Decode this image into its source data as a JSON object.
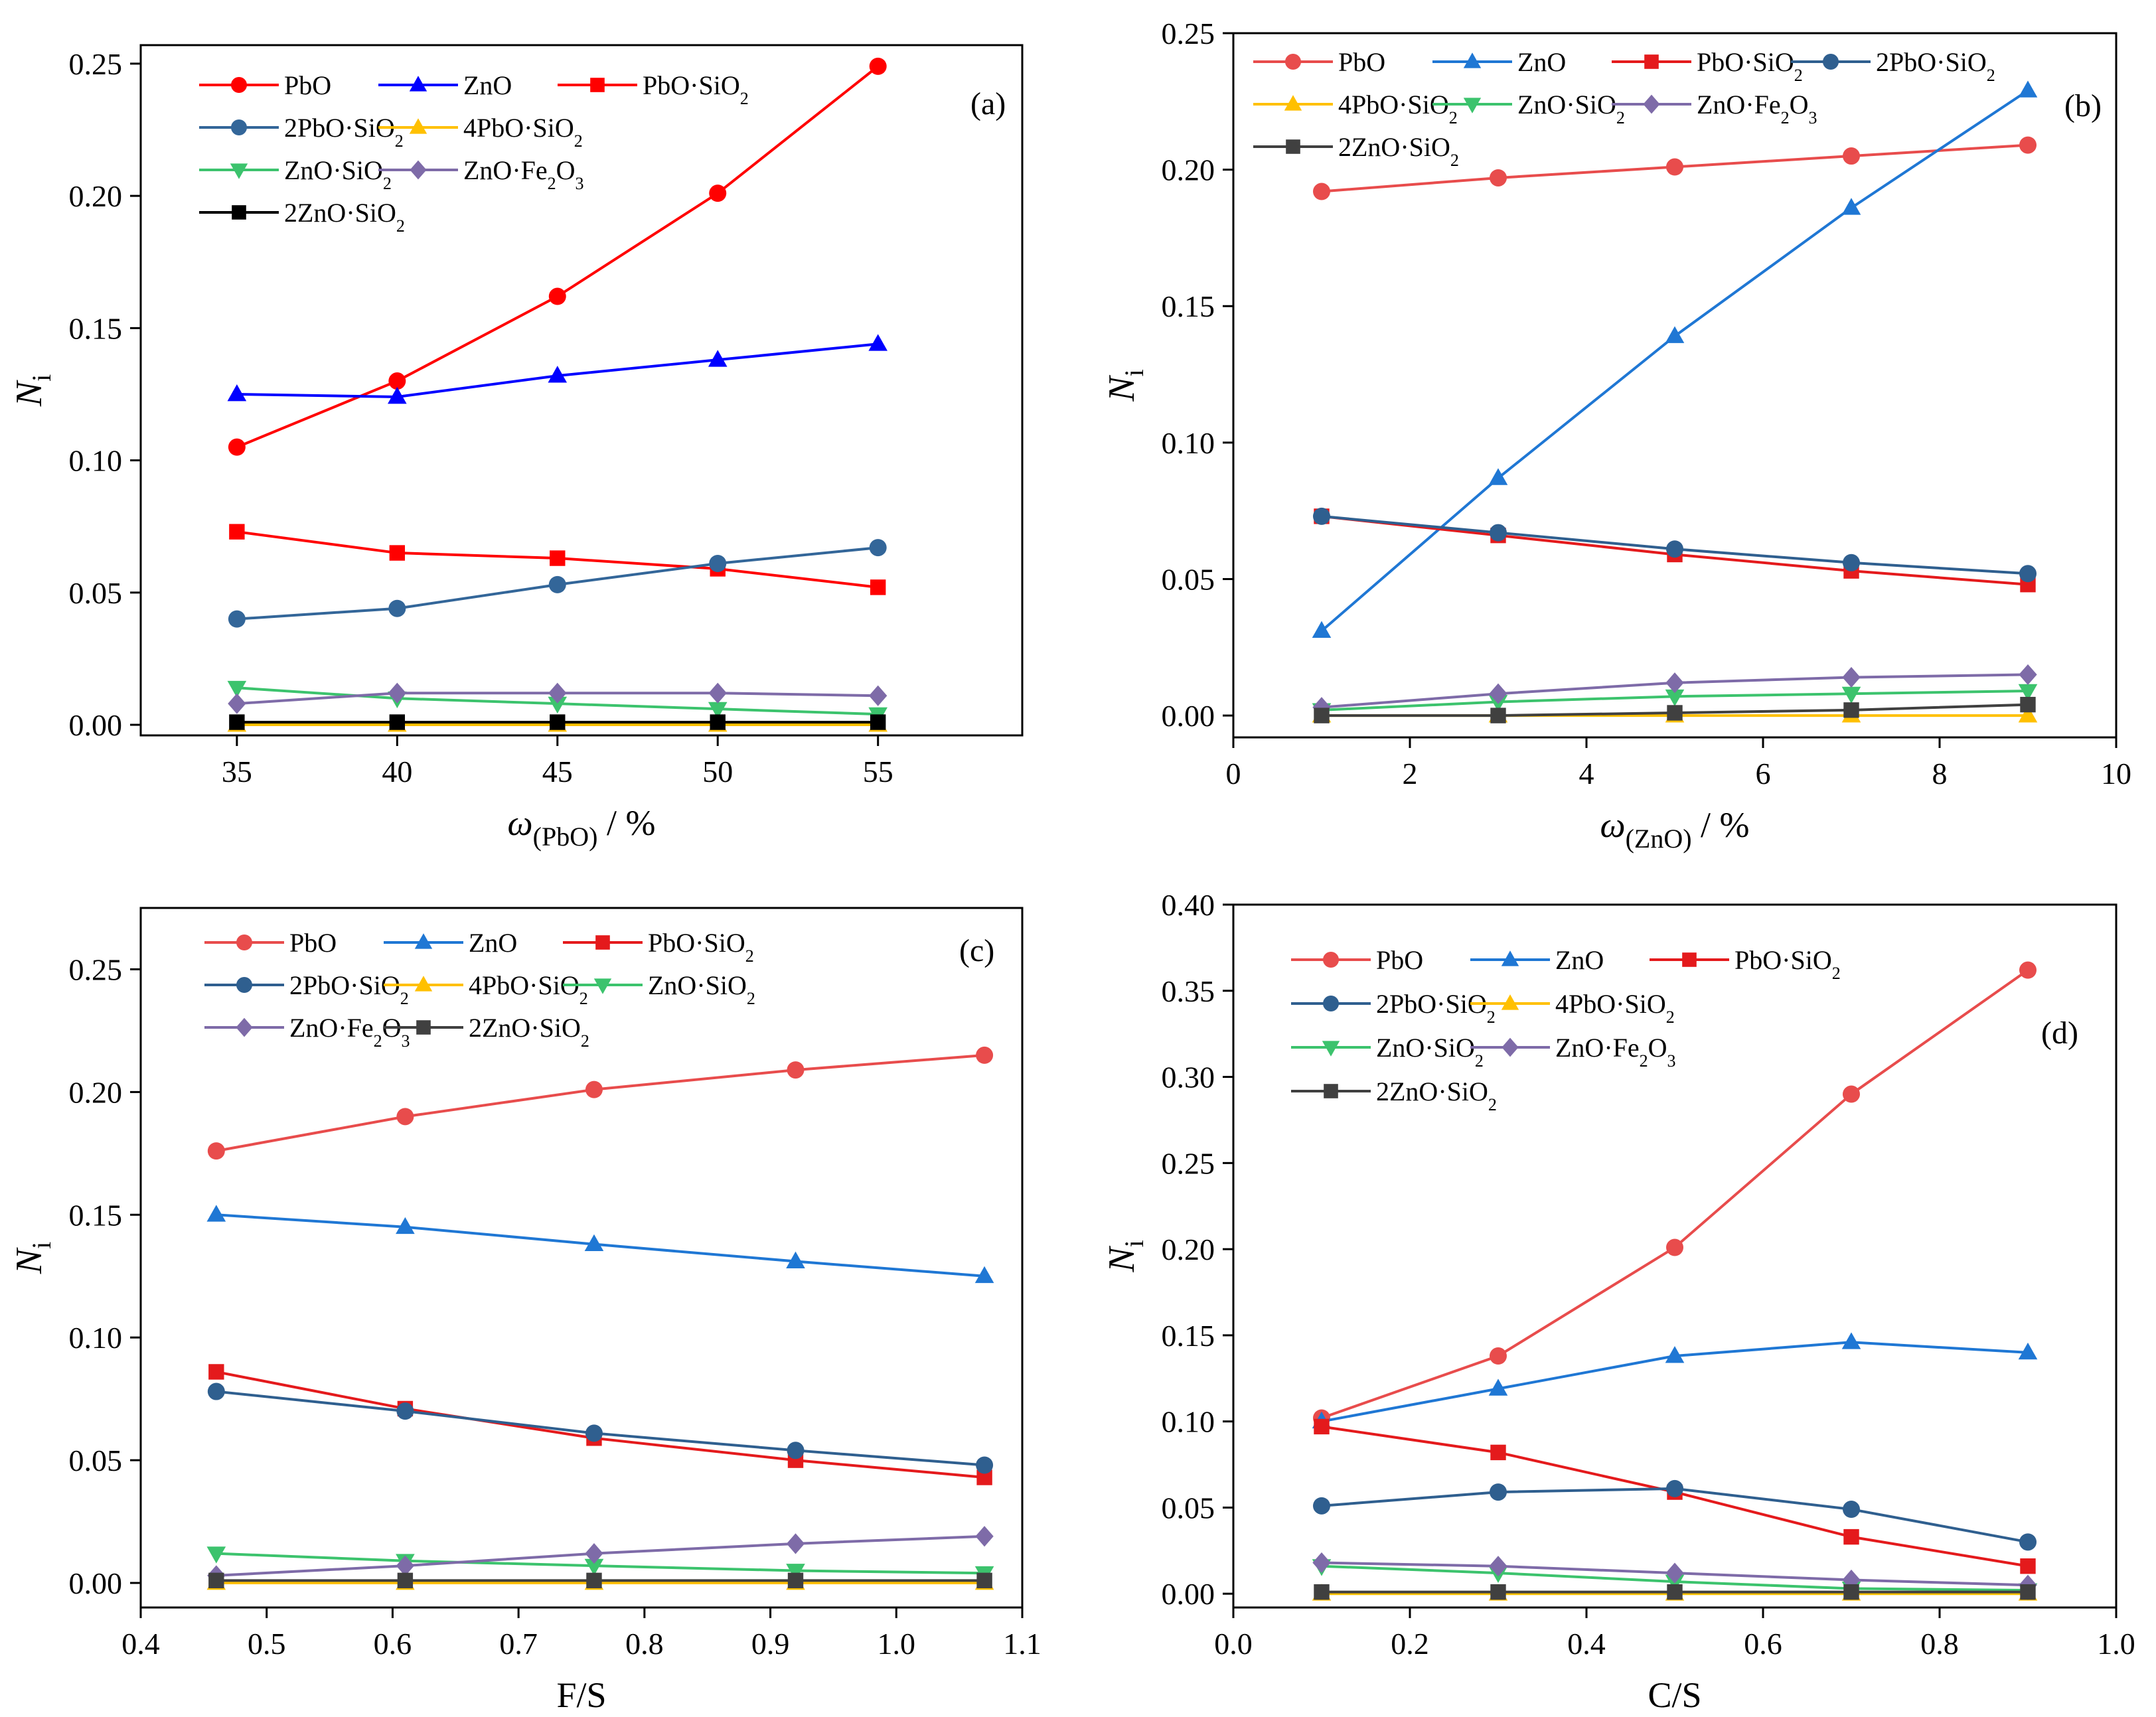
{
  "chart_data": [
    {
      "panel_label": "(a)",
      "type": "line",
      "xlabel": {
        "main": "ω",
        "sub": "(PbO)",
        "tail": " / %"
      },
      "ylabel": {
        "main": "N",
        "sub": "i"
      },
      "xlim": [
        32,
        59.5
      ],
      "ylim": [
        -0.004,
        0.257
      ],
      "xticks": [
        "35",
        "40",
        "45",
        "50",
        "55"
      ],
      "xtick_values": [
        35,
        40,
        45,
        50,
        55
      ],
      "yticks": [
        "0.00",
        "0.05",
        "0.10",
        "0.15",
        "0.20",
        "0.25"
      ],
      "ytick_values": [
        0,
        0.05,
        0.1,
        0.15,
        0.2,
        0.25
      ],
      "x": [
        35,
        40,
        45,
        50,
        55
      ],
      "legend_rows": [
        [
          "PbO",
          "ZnO",
          "PbO·SiO2"
        ],
        [
          "2PbO·SiO2",
          "4PbO·SiO2"
        ],
        [
          "ZnO·SiO2",
          "ZnO·Fe2O3"
        ],
        [
          "2ZnO·SiO2"
        ]
      ],
      "series": [
        {
          "name": "PbO",
          "color": "#ff0000",
          "marker": "circle",
          "values": [
            0.105,
            0.13,
            0.162,
            0.201,
            0.249
          ]
        },
        {
          "name": "ZnO",
          "color": "#0000ff",
          "marker": "triangle-up",
          "values": [
            0.125,
            0.124,
            0.132,
            0.138,
            0.144
          ]
        },
        {
          "name": "PbO·SiO2",
          "color": "#ff0000",
          "marker": "square",
          "values": [
            0.073,
            0.065,
            0.063,
            0.059,
            0.052
          ]
        },
        {
          "name": "2PbO·SiO2",
          "color": "#336699",
          "marker": "circle",
          "values": [
            0.04,
            0.044,
            0.053,
            0.061,
            0.067
          ]
        },
        {
          "name": "4PbO·SiO2",
          "color": "#ffc000",
          "marker": "triangle-up",
          "values": [
            0.0,
            0.0,
            0.0,
            0.0,
            0.0
          ]
        },
        {
          "name": "ZnO·SiO2",
          "color": "#3cc36d",
          "marker": "triangle-down",
          "values": [
            0.014,
            0.01,
            0.008,
            0.006,
            0.004
          ]
        },
        {
          "name": "ZnO·Fe2O3",
          "color": "#7e6ba8",
          "marker": "diamond",
          "values": [
            0.008,
            0.012,
            0.012,
            0.012,
            0.011
          ]
        },
        {
          "name": "2ZnO·SiO2",
          "color": "#000000",
          "marker": "square",
          "values": [
            0.001,
            0.001,
            0.001,
            0.001,
            0.001
          ]
        }
      ]
    },
    {
      "panel_label": "(b)",
      "type": "line",
      "xlabel": {
        "main": "ω",
        "sub": "(ZnO)",
        "tail": " / %"
      },
      "ylabel": {
        "main": "N",
        "sub": "i"
      },
      "xlim": [
        0,
        10
      ],
      "ylim": [
        -0.008,
        0.25
      ],
      "xticks": [
        "0",
        "2",
        "4",
        "6",
        "8",
        "10"
      ],
      "xtick_values": [
        0,
        2,
        4,
        6,
        8,
        10
      ],
      "yticks": [
        "0.00",
        "0.05",
        "0.10",
        "0.15",
        "0.20",
        "0.25"
      ],
      "ytick_values": [
        0,
        0.05,
        0.1,
        0.15,
        0.2,
        0.25
      ],
      "x": [
        1,
        3,
        5,
        7,
        9
      ],
      "legend_rows": [
        [
          "PbO",
          "ZnO",
          "PbO·SiO2",
          "2PbO·SiO2"
        ],
        [
          "4PbO·SiO2",
          "ZnO·SiO2",
          "ZnO·Fe2O3"
        ],
        [
          "2ZnO·SiO2"
        ]
      ],
      "series": [
        {
          "name": "PbO",
          "color": "#e84c4c",
          "marker": "circle",
          "values": [
            0.192,
            0.197,
            0.201,
            0.205,
            0.209
          ]
        },
        {
          "name": "ZnO",
          "color": "#1f77d4",
          "marker": "triangle-up",
          "values": [
            0.031,
            0.087,
            0.139,
            0.186,
            0.229
          ]
        },
        {
          "name": "PbO·SiO2",
          "color": "#e41a1c",
          "marker": "square",
          "values": [
            0.073,
            0.066,
            0.059,
            0.053,
            0.048
          ]
        },
        {
          "name": "2PbO·SiO2",
          "color": "#2f5f8f",
          "marker": "circle",
          "values": [
            0.073,
            0.067,
            0.061,
            0.056,
            0.052
          ]
        },
        {
          "name": "4PbO·SiO2",
          "color": "#ffc000",
          "marker": "triangle-up",
          "values": [
            0.0,
            0.0,
            0.0,
            0.0,
            0.0
          ]
        },
        {
          "name": "ZnO·SiO2",
          "color": "#3cc36d",
          "marker": "triangle-down",
          "values": [
            0.002,
            0.005,
            0.007,
            0.008,
            0.009
          ]
        },
        {
          "name": "ZnO·Fe2O3",
          "color": "#7e6ba8",
          "marker": "diamond",
          "values": [
            0.003,
            0.008,
            0.012,
            0.014,
            0.015
          ]
        },
        {
          "name": "2ZnO·SiO2",
          "color": "#404040",
          "marker": "square",
          "values": [
            0.0,
            0.0,
            0.001,
            0.002,
            0.004
          ]
        }
      ]
    },
    {
      "panel_label": "(c)",
      "type": "line",
      "xlabel": {
        "main": "F/S",
        "sub": "",
        "tail": ""
      },
      "ylabel": {
        "main": "N",
        "sub": "i"
      },
      "xlim": [
        0.4,
        1.1
      ],
      "ylim": [
        -0.01,
        0.275
      ],
      "xticks": [
        "0.4",
        "0.5",
        "0.6",
        "0.7",
        "0.8",
        "0.9",
        "1.0",
        "1.1"
      ],
      "xtick_values": [
        0.4,
        0.5,
        0.6,
        0.7,
        0.8,
        0.9,
        1.0,
        1.1
      ],
      "yticks": [
        "0.00",
        "0.05",
        "0.10",
        "0.15",
        "0.20",
        "0.25"
      ],
      "ytick_values": [
        0,
        0.05,
        0.1,
        0.15,
        0.2,
        0.25
      ],
      "x": [
        0.46,
        0.61,
        0.76,
        0.92,
        1.07
      ],
      "legend_rows": [
        [
          "PbO",
          "ZnO",
          "PbO·SiO2"
        ],
        [
          "2PbO·SiO2",
          "4PbO·SiO2",
          "ZnO·SiO2"
        ],
        [
          "ZnO·Fe2O3",
          "2ZnO·SiO2"
        ]
      ],
      "series": [
        {
          "name": "PbO",
          "color": "#e84c4c",
          "marker": "circle",
          "values": [
            0.176,
            0.19,
            0.201,
            0.209,
            0.215
          ]
        },
        {
          "name": "ZnO",
          "color": "#1f77d4",
          "marker": "triangle-up",
          "values": [
            0.15,
            0.145,
            0.138,
            0.131,
            0.125
          ]
        },
        {
          "name": "PbO·SiO2",
          "color": "#e41a1c",
          "marker": "square",
          "values": [
            0.086,
            0.071,
            0.059,
            0.05,
            0.043
          ]
        },
        {
          "name": "2PbO·SiO2",
          "color": "#2f5f8f",
          "marker": "circle",
          "values": [
            0.078,
            0.07,
            0.061,
            0.054,
            0.048
          ]
        },
        {
          "name": "4PbO·SiO2",
          "color": "#ffc000",
          "marker": "triangle-up",
          "values": [
            0.0,
            0.0,
            0.0,
            0.0,
            0.0
          ]
        },
        {
          "name": "ZnO·SiO2",
          "color": "#3cc36d",
          "marker": "triangle-down",
          "values": [
            0.012,
            0.009,
            0.007,
            0.005,
            0.004
          ]
        },
        {
          "name": "ZnO·Fe2O3",
          "color": "#7e6ba8",
          "marker": "diamond",
          "values": [
            0.003,
            0.007,
            0.012,
            0.016,
            0.019
          ]
        },
        {
          "name": "2ZnO·SiO2",
          "color": "#404040",
          "marker": "square",
          "values": [
            0.001,
            0.001,
            0.001,
            0.001,
            0.001
          ]
        }
      ]
    },
    {
      "panel_label": "(d)",
      "type": "line",
      "xlabel": {
        "main": "C/S",
        "sub": "",
        "tail": ""
      },
      "ylabel": {
        "main": "N",
        "sub": "i"
      },
      "xlim": [
        0,
        1
      ],
      "ylim": [
        -0.008,
        0.4
      ],
      "xticks": [
        "0.0",
        "0.2",
        "0.4",
        "0.6",
        "0.8",
        "1.0"
      ],
      "xtick_values": [
        0,
        0.2,
        0.4,
        0.6,
        0.8,
        1.0
      ],
      "yticks": [
        "0.00",
        "0.05",
        "0.10",
        "0.15",
        "0.20",
        "0.25",
        "0.30",
        "0.35",
        "0.40"
      ],
      "ytick_values": [
        0,
        0.05,
        0.1,
        0.15,
        0.2,
        0.25,
        0.3,
        0.35,
        0.4
      ],
      "x": [
        0.1,
        0.3,
        0.5,
        0.7,
        0.9
      ],
      "legend_rows": [
        [
          "PbO",
          "ZnO",
          "PbO·SiO2"
        ],
        [
          "2PbO·SiO2",
          "4PbO·SiO2"
        ],
        [
          "ZnO·SiO2",
          "ZnO·Fe2O3"
        ],
        [
          "2ZnO·SiO2"
        ]
      ],
      "series": [
        {
          "name": "PbO",
          "color": "#e84c4c",
          "marker": "circle",
          "values": [
            0.102,
            0.138,
            0.201,
            0.29,
            0.362
          ]
        },
        {
          "name": "ZnO",
          "color": "#1f77d4",
          "marker": "triangle-up",
          "values": [
            0.1,
            0.119,
            0.138,
            0.146,
            0.14
          ]
        },
        {
          "name": "PbO·SiO2",
          "color": "#e41a1c",
          "marker": "square",
          "values": [
            0.097,
            0.082,
            0.059,
            0.033,
            0.016
          ]
        },
        {
          "name": "2PbO·SiO2",
          "color": "#2f5f8f",
          "marker": "circle",
          "values": [
            0.051,
            0.059,
            0.061,
            0.049,
            0.03
          ]
        },
        {
          "name": "4PbO·SiO2",
          "color": "#ffc000",
          "marker": "triangle-up",
          "values": [
            0.0,
            0.0,
            0.0,
            0.0,
            0.0
          ]
        },
        {
          "name": "ZnO·SiO2",
          "color": "#3cc36d",
          "marker": "triangle-down",
          "values": [
            0.016,
            0.012,
            0.007,
            0.003,
            0.002
          ]
        },
        {
          "name": "ZnO·Fe2O3",
          "color": "#7e6ba8",
          "marker": "diamond",
          "values": [
            0.018,
            0.016,
            0.012,
            0.008,
            0.005
          ]
        },
        {
          "name": "2ZnO·SiO2",
          "color": "#404040",
          "marker": "square",
          "values": [
            0.001,
            0.001,
            0.001,
            0.001,
            0.001
          ]
        }
      ]
    }
  ]
}
